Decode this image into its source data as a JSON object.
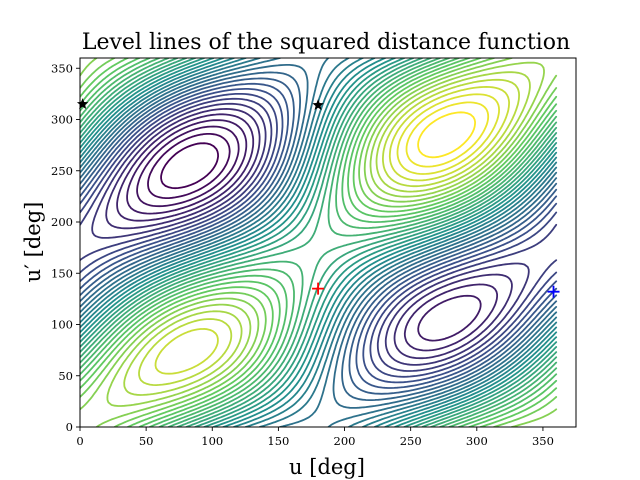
{
  "chart_data": {
    "type": "contour",
    "title": "Level lines of the squared distance function",
    "xlabel": "u [deg]",
    "ylabel": "u′ [deg]",
    "xlim": [
      0,
      375
    ],
    "ylim": [
      0,
      360
    ],
    "x_ticks": [
      0,
      50,
      100,
      150,
      200,
      250,
      300,
      350
    ],
    "y_ticks": [
      0,
      50,
      100,
      150,
      200,
      250,
      300,
      350
    ],
    "grid": false,
    "colormap": [
      "#440154",
      "#3b528b",
      "#21918c",
      "#5ec962",
      "#fde725"
    ],
    "contour_levels": 38,
    "markers": [
      {
        "kind": "plus",
        "u": 180,
        "u_prime": 135,
        "color": "#ff0000"
      },
      {
        "kind": "plus",
        "u": 358,
        "u_prime": 132,
        "color": "#0000ff"
      },
      {
        "kind": "star",
        "u": 2,
        "u_prime": 315,
        "color": "#000000"
      },
      {
        "kind": "star",
        "u": 180,
        "u_prime": 314,
        "color": "#000000"
      }
    ]
  }
}
